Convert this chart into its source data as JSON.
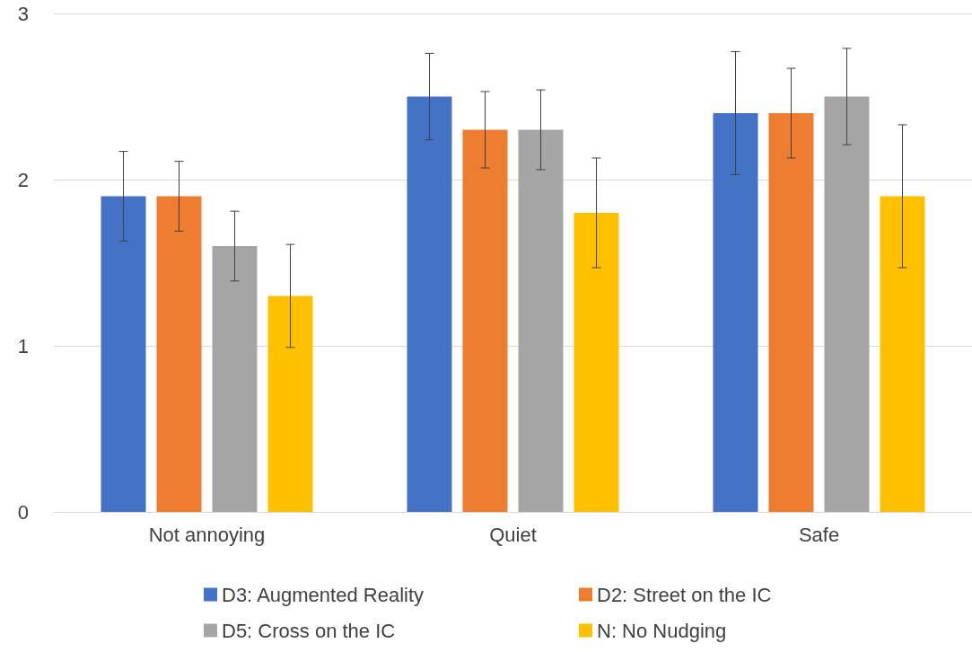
{
  "chart_data": {
    "type": "bar",
    "categories": [
      "Not annoying",
      "Quiet",
      "Safe"
    ],
    "series": [
      {
        "name": "D3: Augmented Reality",
        "color": "#4472c4",
        "values": [
          1.9,
          2.5,
          2.4
        ],
        "errors": [
          0.27,
          0.26,
          0.37
        ]
      },
      {
        "name": "D2: Street on the IC",
        "color": "#ed7d31",
        "values": [
          1.9,
          2.3,
          2.4
        ],
        "errors": [
          0.21,
          0.23,
          0.27
        ]
      },
      {
        "name": "D5: Cross on the IC",
        "color": "#a5a5a5",
        "values": [
          1.6,
          2.3,
          2.5
        ],
        "errors": [
          0.21,
          0.24,
          0.29
        ]
      },
      {
        "name": "N: No Nudging",
        "color": "#ffc000",
        "values": [
          1.3,
          1.8,
          1.9
        ],
        "errors": [
          0.31,
          0.33,
          0.43
        ]
      }
    ],
    "ylim": [
      0,
      3
    ],
    "yticks": [
      0,
      1,
      2,
      3
    ],
    "grid": "y",
    "legend": "bottom"
  }
}
